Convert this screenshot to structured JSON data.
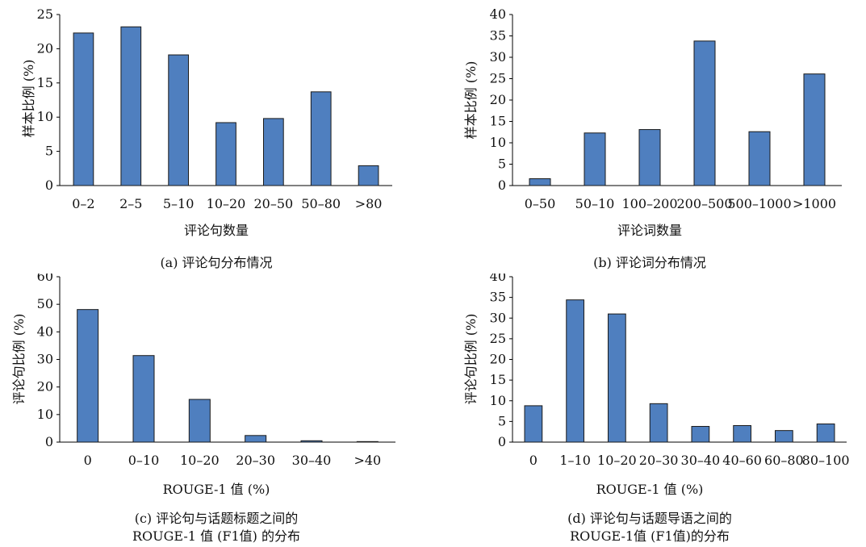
{
  "chart_data": [
    {
      "type": "bar",
      "categories": [
        "0–2",
        "2–5",
        "5–10",
        "10–20",
        "20–50",
        "50–80",
        ">80"
      ],
      "values": [
        22.3,
        23.2,
        19.1,
        9.2,
        9.8,
        13.7,
        2.9
      ],
      "xlabel": "评论句数量",
      "ylabel": "样本比例 (%)",
      "ylim": [
        0,
        25
      ],
      "yticks": [
        0,
        5,
        10,
        15,
        20,
        25
      ],
      "caption": [
        "(a) 评论句分布情况"
      ],
      "color": "#4f7fbf"
    },
    {
      "type": "bar",
      "categories": [
        "0–50",
        "50–10",
        "100–200",
        "200–500",
        "500–1000",
        ">1000"
      ],
      "values": [
        1.6,
        12.3,
        13.1,
        33.8,
        12.6,
        26.1
      ],
      "xlabel": "评论词数量",
      "ylabel": "样本比例 (%)",
      "ylim": [
        0,
        40
      ],
      "yticks": [
        0,
        5,
        10,
        15,
        20,
        25,
        30,
        35,
        40
      ],
      "caption": [
        "(b) 评论词分布情况"
      ],
      "color": "#4f7fbf"
    },
    {
      "type": "bar",
      "categories": [
        "0",
        "0–10",
        "10–20",
        "20–30",
        "30–40",
        ">40"
      ],
      "values": [
        48.1,
        31.4,
        15.5,
        2.4,
        0.5,
        0.2
      ],
      "xlabel": "ROUGE-1 值 (%)",
      "ylabel": "评论句比例 (%)",
      "ylim": [
        0,
        60
      ],
      "yticks": [
        0,
        10,
        20,
        30,
        40,
        50,
        60
      ],
      "caption": [
        "(c) 评论句与话题标题之间的",
        "ROUGE-1 值 (F1值) 的分布"
      ],
      "color": "#4f7fbf"
    },
    {
      "type": "bar",
      "categories": [
        "0",
        "1–10",
        "10–20",
        "20–30",
        "30–40",
        "40–60",
        "60–80",
        "80–100"
      ],
      "values": [
        8.8,
        34.4,
        31.0,
        9.3,
        3.8,
        4.0,
        2.8,
        4.4
      ],
      "xlabel": "ROUGE-1 值 (%)",
      "ylabel": "评论句比例 (%)",
      "ylim": [
        0,
        40
      ],
      "yticks": [
        0,
        5,
        10,
        15,
        20,
        25,
        30,
        35,
        40
      ],
      "caption": [
        "(d) 评论句与话题导语之间的",
        "ROUGE-1值 (F1值)的分布"
      ],
      "color": "#4f7fbf"
    }
  ]
}
